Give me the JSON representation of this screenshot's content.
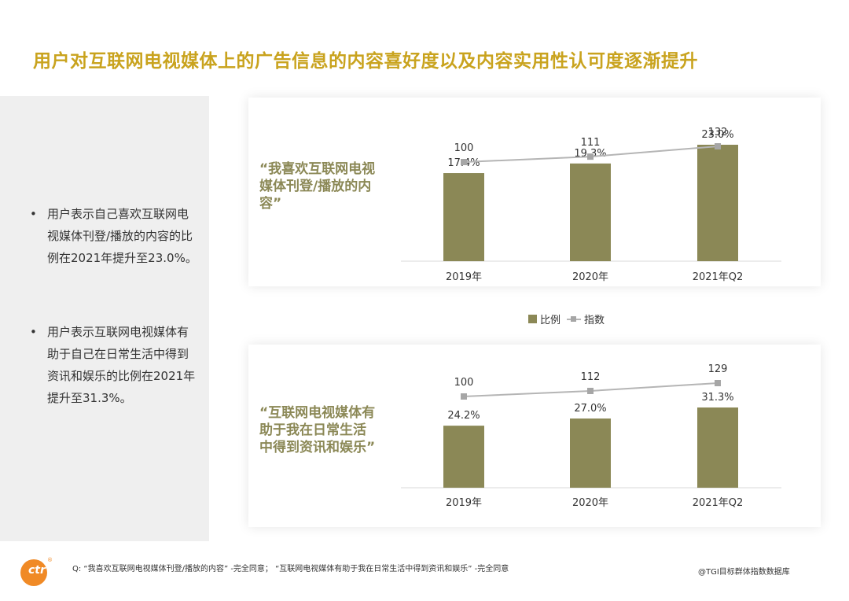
{
  "title": "用户对互联网电视媒体上的广告信息的内容喜好度以及内容实用性认可度逐渐提升",
  "bullets": [
    "用户表示自己喜欢互联网电视媒体刊登/播放的内容的比例在2021年提升至23.0%。",
    "用户表示互联网电视媒体有助于自己在日常生活中得到资讯和娱乐的比例在2021年提升至31.3%。"
  ],
  "colors": {
    "accent_title": "#c9a31e",
    "bar": "#8b8856",
    "line": "#b5b5b5",
    "marker": "#a6a6a6",
    "quote": "#8b8856"
  },
  "legend": {
    "bar_label": "比例",
    "line_label": "指数"
  },
  "chart_data": [
    {
      "type": "bar",
      "quote": "“我喜欢互联网电视媒体刊登/播放的内容”",
      "categories": [
        "2019年",
        "2020年",
        "2021年Q2"
      ],
      "series": [
        {
          "name": "比例",
          "values": [
            17.4,
            19.3,
            23.0
          ],
          "labels": [
            "17.4%",
            "19.3%",
            "23.0%"
          ]
        },
        {
          "name": "指数",
          "type": "line",
          "values": [
            100,
            111,
            132
          ]
        }
      ]
    },
    {
      "type": "bar",
      "quote": "“互联网电视媒体有助于我在日常生活中得到资讯和娱乐”",
      "categories": [
        "2019年",
        "2020年",
        "2021年Q2"
      ],
      "series": [
        {
          "name": "比例",
          "values": [
            24.2,
            27.0,
            31.3
          ],
          "labels": [
            "24.2%",
            "27.0%",
            "31.3%"
          ]
        },
        {
          "name": "指数",
          "type": "line",
          "values": [
            100,
            112,
            129
          ]
        }
      ]
    }
  ],
  "footnote": "Q:  “我喜欢互联网电视媒体刊登/播放的内容” -完全同意；  “互联网电视媒体有助于我在日常生活中得到资讯和娱乐” -完全同意",
  "source": "@TGI目标群体指数数据库",
  "logo": {
    "text": "ctr",
    "mark": "®"
  }
}
